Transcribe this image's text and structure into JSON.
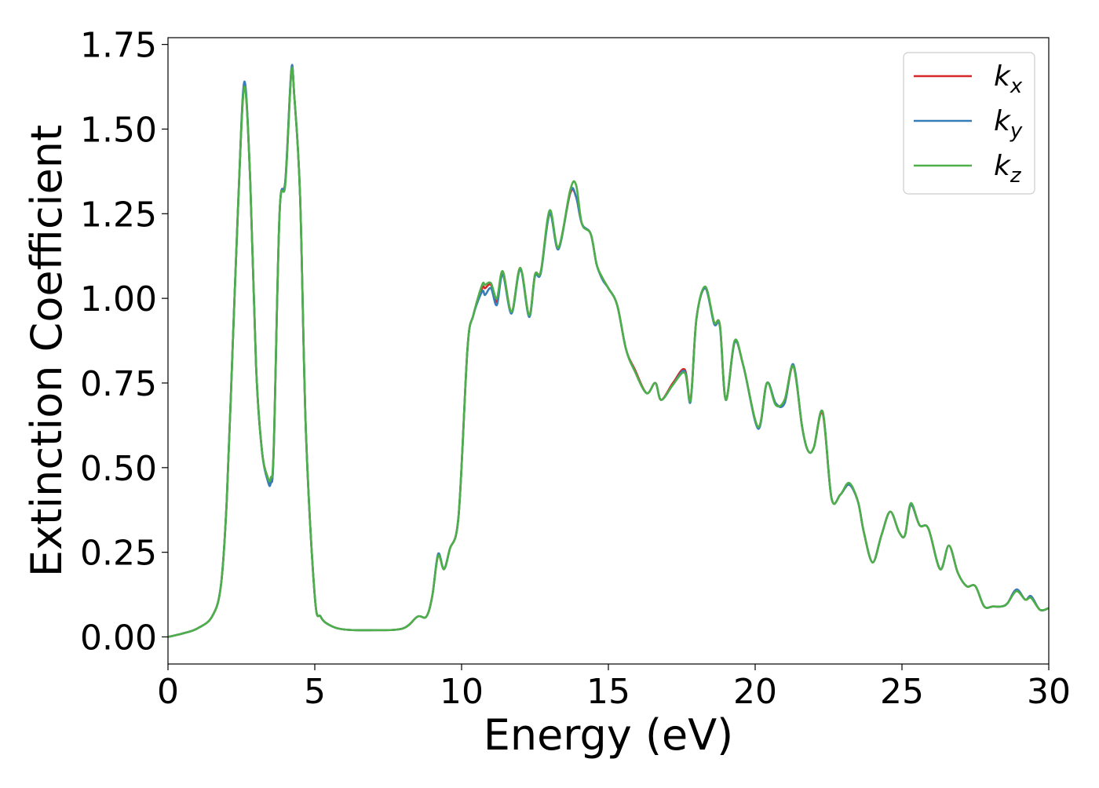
{
  "chart_data": {
    "type": "line",
    "title": "",
    "xlabel": "Energy (eV)",
    "ylabel": "Extinction Coefficient",
    "xlim": [
      0,
      30
    ],
    "ylim": [
      -0.08,
      1.77
    ],
    "xticks": [
      0,
      5,
      10,
      15,
      20,
      25,
      30
    ],
    "xtick_labels": [
      "0",
      "5",
      "10",
      "15",
      "20",
      "25",
      "30"
    ],
    "yticks": [
      0.0,
      0.25,
      0.5,
      0.75,
      1.0,
      1.25,
      1.5,
      1.75
    ],
    "ytick_labels": [
      "0.00",
      "0.25",
      "0.50",
      "0.75",
      "1.00",
      "1.25",
      "1.50",
      "1.75"
    ],
    "grid": false,
    "legend_position": "top-right",
    "series": [
      {
        "name": "k_x",
        "label_base": "k",
        "label_sub": "x",
        "color": "#d62728",
        "x": [
          0,
          0.5,
          1.0,
          1.5,
          1.8,
          2.0,
          2.2,
          2.4,
          2.6,
          2.8,
          3.0,
          3.2,
          3.4,
          3.5,
          3.6,
          3.8,
          4.0,
          4.2,
          4.3,
          4.5,
          4.7,
          5.0,
          5.2,
          5.5,
          6.0,
          7.0,
          8.0,
          8.5,
          8.8,
          9.0,
          9.2,
          9.4,
          9.6,
          9.9,
          10.2,
          10.4,
          10.7,
          10.8,
          11.0,
          11.2,
          11.4,
          11.7,
          12.0,
          12.3,
          12.5,
          12.7,
          13.0,
          13.3,
          13.7,
          13.9,
          14.1,
          14.4,
          14.6,
          14.8,
          15.0,
          15.3,
          15.6,
          15.9,
          16.3,
          16.6,
          16.8,
          17.2,
          17.6,
          17.8,
          18.0,
          18.3,
          18.6,
          18.8,
          19.0,
          19.3,
          19.6,
          20.1,
          20.4,
          20.7,
          21.0,
          21.3,
          21.6,
          21.8,
          22.0,
          22.3,
          22.6,
          22.9,
          23.2,
          23.5,
          23.7,
          24.0,
          24.3,
          24.6,
          24.9,
          25.1,
          25.3,
          25.6,
          25.9,
          26.3,
          26.6,
          26.9,
          27.2,
          27.5,
          27.8,
          28.1,
          28.4,
          28.6,
          28.9,
          29.2,
          29.4,
          29.7,
          30.0
        ],
        "y": [
          0.0,
          0.01,
          0.025,
          0.06,
          0.15,
          0.4,
          0.85,
          1.3,
          1.63,
          1.35,
          0.8,
          0.55,
          0.47,
          0.46,
          0.55,
          1.25,
          1.35,
          1.67,
          1.6,
          1.3,
          0.6,
          0.12,
          0.06,
          0.035,
          0.022,
          0.02,
          0.025,
          0.06,
          0.06,
          0.12,
          0.24,
          0.2,
          0.26,
          0.36,
          0.85,
          0.95,
          1.03,
          1.03,
          1.04,
          0.99,
          1.08,
          0.96,
          1.09,
          0.95,
          1.07,
          1.08,
          1.25,
          1.15,
          1.31,
          1.3,
          1.22,
          1.19,
          1.1,
          1.06,
          1.03,
          0.98,
          0.85,
          0.79,
          0.72,
          0.75,
          0.7,
          0.75,
          0.79,
          0.7,
          0.94,
          1.03,
          0.93,
          0.92,
          0.7,
          0.87,
          0.8,
          0.62,
          0.75,
          0.69,
          0.69,
          0.8,
          0.62,
          0.55,
          0.56,
          0.66,
          0.41,
          0.42,
          0.45,
          0.4,
          0.31,
          0.22,
          0.3,
          0.37,
          0.31,
          0.3,
          0.39,
          0.33,
          0.32,
          0.2,
          0.27,
          0.19,
          0.15,
          0.15,
          0.09,
          0.09,
          0.09,
          0.1,
          0.14,
          0.11,
          0.12,
          0.08,
          0.085
        ]
      },
      {
        "name": "k_y",
        "label_base": "k",
        "label_sub": "y",
        "color": "#377eb8",
        "x": [
          0,
          0.5,
          1.0,
          1.5,
          1.8,
          2.0,
          2.2,
          2.4,
          2.6,
          2.8,
          3.0,
          3.2,
          3.4,
          3.5,
          3.6,
          3.8,
          4.0,
          4.2,
          4.3,
          4.5,
          4.7,
          5.0,
          5.2,
          5.5,
          6.0,
          7.0,
          8.0,
          8.5,
          8.8,
          9.0,
          9.2,
          9.4,
          9.6,
          9.9,
          10.2,
          10.4,
          10.7,
          10.8,
          11.0,
          11.2,
          11.4,
          11.7,
          12.0,
          12.3,
          12.5,
          12.7,
          13.0,
          13.3,
          13.7,
          13.9,
          14.1,
          14.4,
          14.6,
          14.8,
          15.0,
          15.3,
          15.6,
          15.9,
          16.3,
          16.6,
          16.8,
          17.2,
          17.6,
          17.8,
          18.0,
          18.3,
          18.6,
          18.8,
          19.0,
          19.3,
          19.6,
          20.1,
          20.4,
          20.7,
          21.0,
          21.3,
          21.6,
          21.8,
          22.0,
          22.3,
          22.6,
          22.9,
          23.2,
          23.5,
          23.7,
          24.0,
          24.3,
          24.6,
          24.9,
          25.1,
          25.3,
          25.6,
          25.9,
          26.3,
          26.6,
          26.9,
          27.2,
          27.5,
          27.8,
          28.1,
          28.4,
          28.6,
          28.9,
          29.2,
          29.4,
          29.7,
          30.0
        ],
        "y": [
          0.0,
          0.01,
          0.025,
          0.06,
          0.15,
          0.4,
          0.85,
          1.3,
          1.64,
          1.35,
          0.8,
          0.55,
          0.46,
          0.455,
          0.55,
          1.25,
          1.35,
          1.675,
          1.6,
          1.3,
          0.6,
          0.12,
          0.06,
          0.035,
          0.022,
          0.02,
          0.025,
          0.06,
          0.06,
          0.12,
          0.245,
          0.2,
          0.26,
          0.36,
          0.85,
          0.95,
          1.02,
          1.01,
          1.03,
          0.98,
          1.07,
          0.955,
          1.085,
          0.945,
          1.065,
          1.075,
          1.25,
          1.145,
          1.315,
          1.3,
          1.22,
          1.19,
          1.1,
          1.055,
          1.03,
          0.98,
          0.85,
          0.785,
          0.72,
          0.75,
          0.7,
          0.745,
          0.785,
          0.695,
          0.94,
          1.03,
          0.925,
          0.915,
          0.7,
          0.87,
          0.8,
          0.615,
          0.75,
          0.69,
          0.69,
          0.805,
          0.62,
          0.55,
          0.56,
          0.665,
          0.41,
          0.42,
          0.45,
          0.4,
          0.31,
          0.22,
          0.3,
          0.37,
          0.31,
          0.3,
          0.39,
          0.33,
          0.32,
          0.2,
          0.27,
          0.19,
          0.15,
          0.15,
          0.09,
          0.09,
          0.09,
          0.1,
          0.14,
          0.11,
          0.12,
          0.08,
          0.085
        ]
      },
      {
        "name": "k_z",
        "label_base": "k",
        "label_sub": "z",
        "color": "#4daf4a",
        "x": [
          0,
          0.5,
          1.0,
          1.5,
          1.8,
          2.0,
          2.2,
          2.4,
          2.6,
          2.8,
          3.0,
          3.2,
          3.4,
          3.5,
          3.6,
          3.8,
          4.0,
          4.2,
          4.3,
          4.5,
          4.7,
          5.0,
          5.2,
          5.5,
          6.0,
          7.0,
          8.0,
          8.5,
          8.8,
          9.0,
          9.2,
          9.4,
          9.6,
          9.9,
          10.2,
          10.4,
          10.7,
          10.8,
          11.0,
          11.2,
          11.4,
          11.7,
          12.0,
          12.3,
          12.5,
          12.7,
          13.0,
          13.3,
          13.7,
          13.9,
          14.1,
          14.4,
          14.6,
          14.8,
          15.0,
          15.3,
          15.6,
          15.9,
          16.3,
          16.6,
          16.8,
          17.2,
          17.6,
          17.8,
          18.0,
          18.3,
          18.6,
          18.8,
          19.0,
          19.3,
          19.6,
          20.1,
          20.4,
          20.7,
          21.0,
          21.3,
          21.6,
          21.8,
          22.0,
          22.3,
          22.6,
          22.9,
          23.2,
          23.5,
          23.7,
          24.0,
          24.3,
          24.6,
          24.9,
          25.1,
          25.3,
          25.6,
          25.9,
          26.3,
          26.6,
          26.9,
          27.2,
          27.5,
          27.8,
          28.1,
          28.4,
          28.6,
          28.9,
          29.2,
          29.4,
          29.7,
          30.0
        ],
        "y": [
          0.0,
          0.01,
          0.025,
          0.06,
          0.15,
          0.4,
          0.85,
          1.3,
          1.625,
          1.35,
          0.8,
          0.55,
          0.47,
          0.47,
          0.56,
          1.25,
          1.34,
          1.665,
          1.6,
          1.3,
          0.6,
          0.12,
          0.06,
          0.035,
          0.022,
          0.02,
          0.025,
          0.06,
          0.06,
          0.12,
          0.24,
          0.2,
          0.26,
          0.36,
          0.85,
          0.95,
          1.04,
          1.04,
          1.045,
          1.0,
          1.08,
          0.96,
          1.09,
          0.95,
          1.07,
          1.08,
          1.26,
          1.15,
          1.32,
          1.335,
          1.22,
          1.19,
          1.1,
          1.06,
          1.03,
          0.98,
          0.85,
          0.785,
          0.72,
          0.75,
          0.7,
          0.745,
          0.78,
          0.7,
          0.94,
          1.035,
          0.93,
          0.92,
          0.7,
          0.875,
          0.8,
          0.62,
          0.75,
          0.685,
          0.7,
          0.8,
          0.62,
          0.55,
          0.56,
          0.665,
          0.41,
          0.42,
          0.455,
          0.4,
          0.31,
          0.22,
          0.3,
          0.37,
          0.31,
          0.3,
          0.395,
          0.33,
          0.32,
          0.2,
          0.27,
          0.19,
          0.15,
          0.15,
          0.09,
          0.09,
          0.09,
          0.1,
          0.135,
          0.11,
          0.115,
          0.08,
          0.085
        ]
      }
    ]
  }
}
